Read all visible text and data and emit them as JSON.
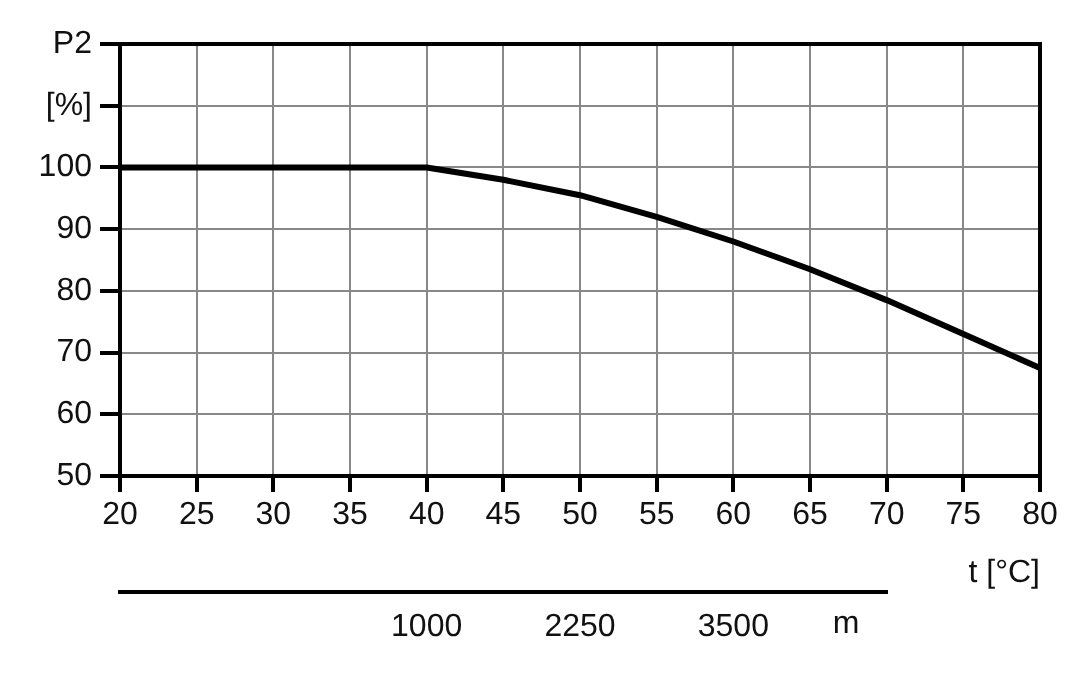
{
  "chart_data": {
    "type": "line",
    "xlabel": "t [°C]",
    "x": [
      20,
      40,
      45,
      50,
      55,
      60,
      65,
      70,
      75,
      80
    ],
    "series": [
      {
        "color": "#000000",
        "values": [
          100,
          100,
          98,
          95.5,
          92,
          88,
          83.5,
          78.5,
          73,
          67.5
        ]
      }
    ],
    "xlim": [
      20,
      80
    ],
    "xticks": [
      20,
      25,
      30,
      35,
      40,
      45,
      50,
      55,
      60,
      65,
      70,
      75,
      80
    ],
    "ylim": [
      50,
      120
    ],
    "yticks": [
      50,
      60,
      70,
      80,
      90,
      100,
      {
        "value": 110,
        "label": "[%]"
      },
      {
        "value": 120,
        "label": "P2"
      }
    ],
    "x2lim": [
      -1500,
      4750
    ],
    "x2ticks": [
      1000,
      2250,
      3500
    ],
    "x2label": "m",
    "grid": true,
    "legend": false,
    "marker": "none",
    "line_style": "solid"
  }
}
